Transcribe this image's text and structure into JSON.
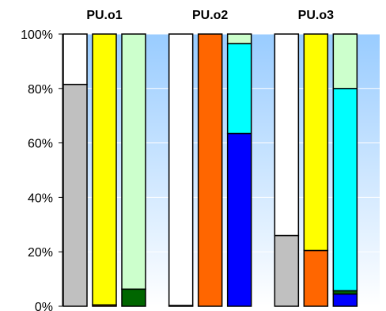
{
  "chart_data": {
    "type": "bar",
    "stacked": true,
    "percent_stacked": true,
    "ylim": [
      0,
      100
    ],
    "y_ticks": [
      "0%",
      "20%",
      "40%",
      "60%",
      "80%",
      "100%"
    ],
    "grid": true,
    "groups": [
      {
        "label": "PU.o1",
        "bars": [
          {
            "segments": [
              {
                "color": "#c0c0c0",
                "value": 81.5
              },
              {
                "color": "#ffffff",
                "value": 18.5
              }
            ]
          },
          {
            "segments": [
              {
                "color": "#ff6600",
                "value": 0.5
              },
              {
                "color": "#ffff00",
                "value": 99.5
              }
            ]
          },
          {
            "segments": [
              {
                "color": "#006600",
                "value": 6.3
              },
              {
                "color": "#ccffcc",
                "value": 93.7
              }
            ]
          }
        ]
      },
      {
        "label": "PU.o2",
        "bars": [
          {
            "segments": [
              {
                "color": "#000000",
                "value": 0.3
              },
              {
                "color": "#ffffff",
                "value": 99.7
              }
            ]
          },
          {
            "segments": [
              {
                "color": "#ff6600",
                "value": 100
              }
            ]
          },
          {
            "segments": [
              {
                "color": "#0000ff",
                "value": 63.5
              },
              {
                "color": "#00ffff",
                "value": 33
              },
              {
                "color": "#ccffcc",
                "value": 3.5
              }
            ]
          }
        ]
      },
      {
        "label": "PU.o3",
        "bars": [
          {
            "segments": [
              {
                "color": "#c0c0c0",
                "value": 26
              },
              {
                "color": "#ffffff",
                "value": 74
              }
            ]
          },
          {
            "segments": [
              {
                "color": "#ff6600",
                "value": 20.5
              },
              {
                "color": "#ffff00",
                "value": 79.5
              }
            ]
          },
          {
            "segments": [
              {
                "color": "#0000ff",
                "value": 4.5
              },
              {
                "color": "#006600",
                "value": 1.2
              },
              {
                "color": "#00ffff",
                "value": 74.3
              },
              {
                "color": "#ccffcc",
                "value": 20
              }
            ]
          }
        ]
      }
    ],
    "colors": {
      "plot_bg_top": "#99ccff",
      "plot_bg_bottom": "#ffffff",
      "grid": "#ffffff",
      "axis": "#000000"
    }
  }
}
